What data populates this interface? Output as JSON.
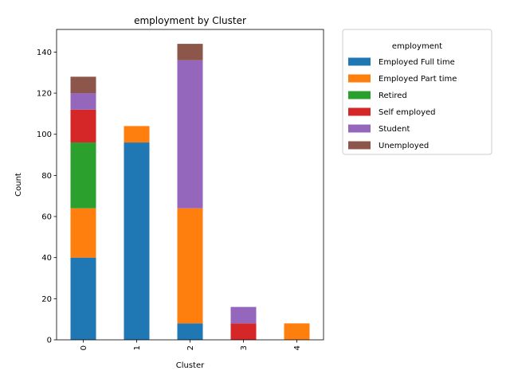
{
  "chart_data": {
    "type": "bar",
    "stacked": true,
    "title": "employment by Cluster",
    "xlabel": "Cluster",
    "ylabel": "Count",
    "categories": [
      "0",
      "1",
      "2",
      "3",
      "4"
    ],
    "ylim": [
      0,
      151
    ],
    "yticks": [
      "0",
      "20",
      "40",
      "60",
      "80",
      "100",
      "120",
      "140"
    ],
    "grid": false,
    "legend": {
      "title": "employment",
      "placement": "outside-top-right"
    },
    "series": [
      {
        "name": "Employed Full time",
        "color": "#1f77b4",
        "values": [
          40,
          96,
          8,
          0,
          0
        ]
      },
      {
        "name": "Employed Part time",
        "color": "#ff7f0e",
        "values": [
          24,
          8,
          56,
          0,
          8
        ]
      },
      {
        "name": "Retired",
        "color": "#2ca02c",
        "values": [
          32,
          0,
          0,
          0,
          0
        ]
      },
      {
        "name": "Self employed",
        "color": "#d62728",
        "values": [
          16,
          0,
          0,
          8,
          0
        ]
      },
      {
        "name": "Student",
        "color": "#9467bd",
        "values": [
          8,
          0,
          72,
          8,
          0
        ]
      },
      {
        "name": "Unemployed",
        "color": "#8c564b",
        "values": [
          8,
          0,
          8,
          0,
          0
        ]
      }
    ]
  }
}
